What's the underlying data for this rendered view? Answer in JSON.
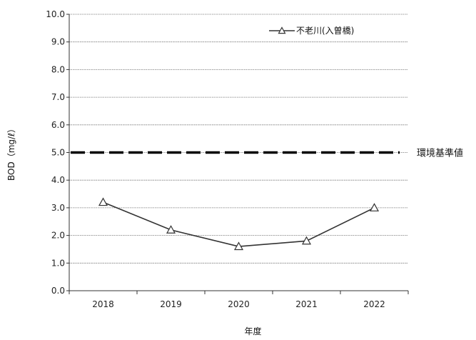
{
  "chart_data": {
    "type": "line",
    "categories": [
      "2018",
      "2019",
      "2020",
      "2021",
      "2022"
    ],
    "series": [
      {
        "name": "不老川(入曽橋)",
        "values": [
          3.2,
          2.2,
          1.6,
          1.8,
          3.0
        ],
        "marker": "triangle-open",
        "color": "#333333"
      }
    ],
    "xlabel": "年度",
    "ylabel": "BOD（mg/ℓ）",
    "ylim": [
      0.0,
      10.0
    ],
    "ytick_step": 1.0,
    "ytick_labels": [
      "0.0",
      "1.0",
      "2.0",
      "3.0",
      "4.0",
      "5.0",
      "6.0",
      "7.0",
      "8.0",
      "9.0",
      "10.0"
    ],
    "grid": true,
    "legend_position": "top-right",
    "reference_line": {
      "value": 5.0,
      "label": "環境基準値",
      "style": "dashed"
    }
  }
}
